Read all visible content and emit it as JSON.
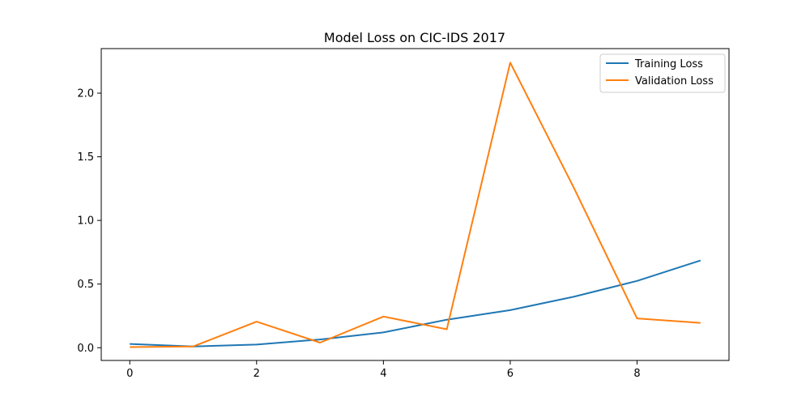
{
  "chart_data": {
    "type": "line",
    "title": "Model Loss on CIC-IDS 2017",
    "xlabel": "",
    "ylabel": "",
    "x": [
      0,
      1,
      2,
      3,
      4,
      5,
      6,
      7,
      8,
      9
    ],
    "xlim": [
      -0.45,
      9.45
    ],
    "ylim": [
      -0.1,
      2.35
    ],
    "xticks": [
      0,
      2,
      4,
      6,
      8
    ],
    "xtick_labels": [
      "0",
      "2",
      "4",
      "6",
      "8"
    ],
    "yticks": [
      0.0,
      0.5,
      1.0,
      1.5,
      2.0
    ],
    "ytick_labels": [
      "0.0",
      "0.5",
      "1.0",
      "1.5",
      "2.0"
    ],
    "grid": false,
    "legend_position": "top-right",
    "series": [
      {
        "name": "Training Loss",
        "color": "#1f77b4",
        "values": [
          0.03,
          0.01,
          0.025,
          0.065,
          0.12,
          0.22,
          0.295,
          0.4,
          0.525,
          0.685
        ]
      },
      {
        "name": "Validation Loss",
        "color": "#ff7f0e",
        "values": [
          0.005,
          0.01,
          0.205,
          0.04,
          0.245,
          0.145,
          2.24,
          1.26,
          0.23,
          0.195
        ]
      }
    ]
  }
}
